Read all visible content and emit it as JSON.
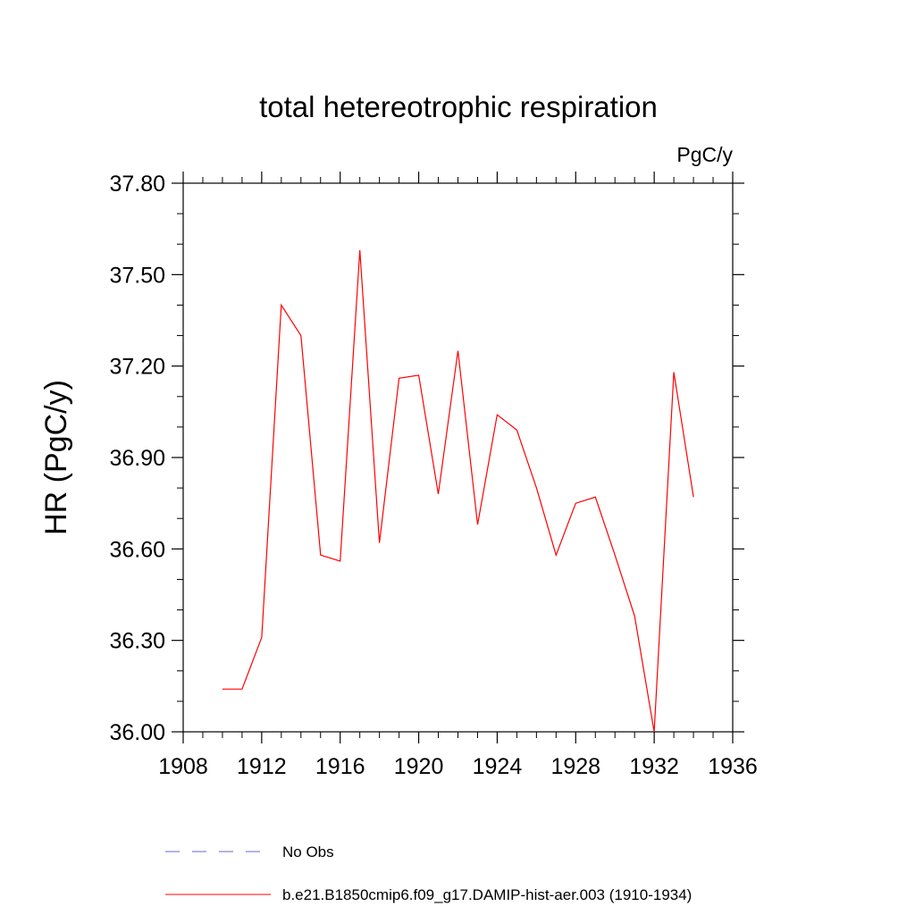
{
  "chart_data": {
    "type": "line",
    "title": "total hetereotrophic respiration",
    "units_label": "PgC/y",
    "ylabel": "HR  (PgC/y)",
    "xlabel": "",
    "xlim": [
      1908,
      1936
    ],
    "ylim": [
      36.0,
      37.8
    ],
    "x_ticks": [
      1908,
      1912,
      1916,
      1920,
      1924,
      1928,
      1932,
      1936
    ],
    "x_tick_labels": [
      "1908",
      "1912",
      "1916",
      "1920",
      "1924",
      "1928",
      "1932",
      "1936"
    ],
    "y_ticks": [
      36.0,
      36.3,
      36.6,
      36.9,
      37.2,
      37.5,
      37.8
    ],
    "y_tick_labels": [
      "36.00",
      "36.30",
      "36.60",
      "36.90",
      "37.20",
      "37.50",
      "37.80"
    ],
    "grid": false,
    "legend_position": "bottom",
    "series": [
      {
        "name": "No Obs",
        "color": "#6666cc",
        "style": "dashed",
        "x": [],
        "y": []
      },
      {
        "name": "b.e21.B1850cmip6.f09_g17.DAMIP-hist-aer.003 (1910-1934)",
        "color": "#ff0000",
        "style": "solid",
        "x": [
          1910,
          1911,
          1912,
          1913,
          1914,
          1915,
          1916,
          1917,
          1918,
          1919,
          1920,
          1921,
          1922,
          1923,
          1924,
          1925,
          1926,
          1927,
          1928,
          1929,
          1930,
          1931,
          1932,
          1933,
          1934
        ],
        "y": [
          36.14,
          36.14,
          36.31,
          37.4,
          37.3,
          36.58,
          36.56,
          37.58,
          36.62,
          37.16,
          37.17,
          36.78,
          37.25,
          36.68,
          37.04,
          36.99,
          36.8,
          36.58,
          36.75,
          36.77,
          36.58,
          36.38,
          36.0,
          37.18,
          36.77
        ]
      }
    ]
  }
}
